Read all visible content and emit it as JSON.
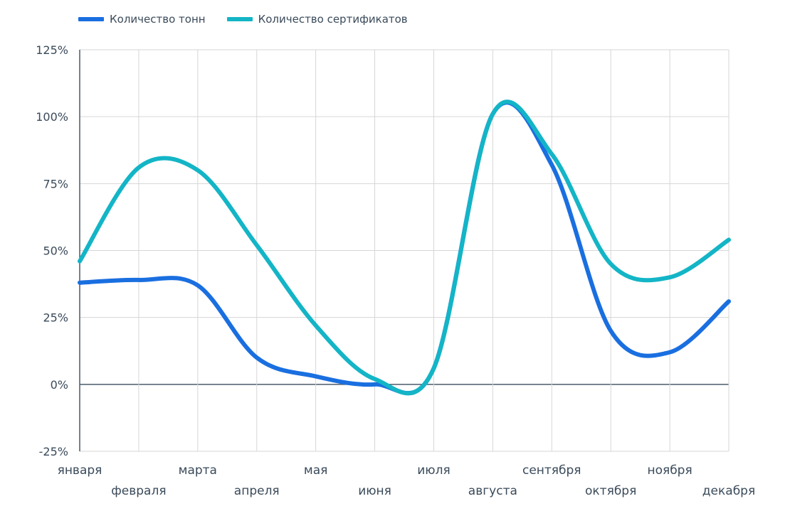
{
  "chart_data": {
    "type": "line",
    "categories": [
      "января",
      "февраля",
      "марта",
      "апреля",
      "мая",
      "июня",
      "июля",
      "августа",
      "сентября",
      "октября",
      "ноября",
      "декабря"
    ],
    "series": [
      {
        "name": "Количество тонн",
        "color": "#1a6fe0",
        "values": [
          38,
          39,
          37,
          10,
          3,
          0,
          6,
          101,
          82,
          20,
          12,
          31
        ]
      },
      {
        "name": "Количество сертификатов",
        "color": "#13b5c6",
        "values": [
          46,
          81,
          80,
          52,
          22,
          2,
          6,
          101,
          86,
          45,
          40,
          54
        ]
      }
    ],
    "yticks": [
      "125%",
      "100%",
      "75%",
      "50%",
      "25%",
      "0%",
      "-25%"
    ],
    "ylim": [
      -25,
      125
    ],
    "grid": true,
    "legend_position": "top-left"
  }
}
